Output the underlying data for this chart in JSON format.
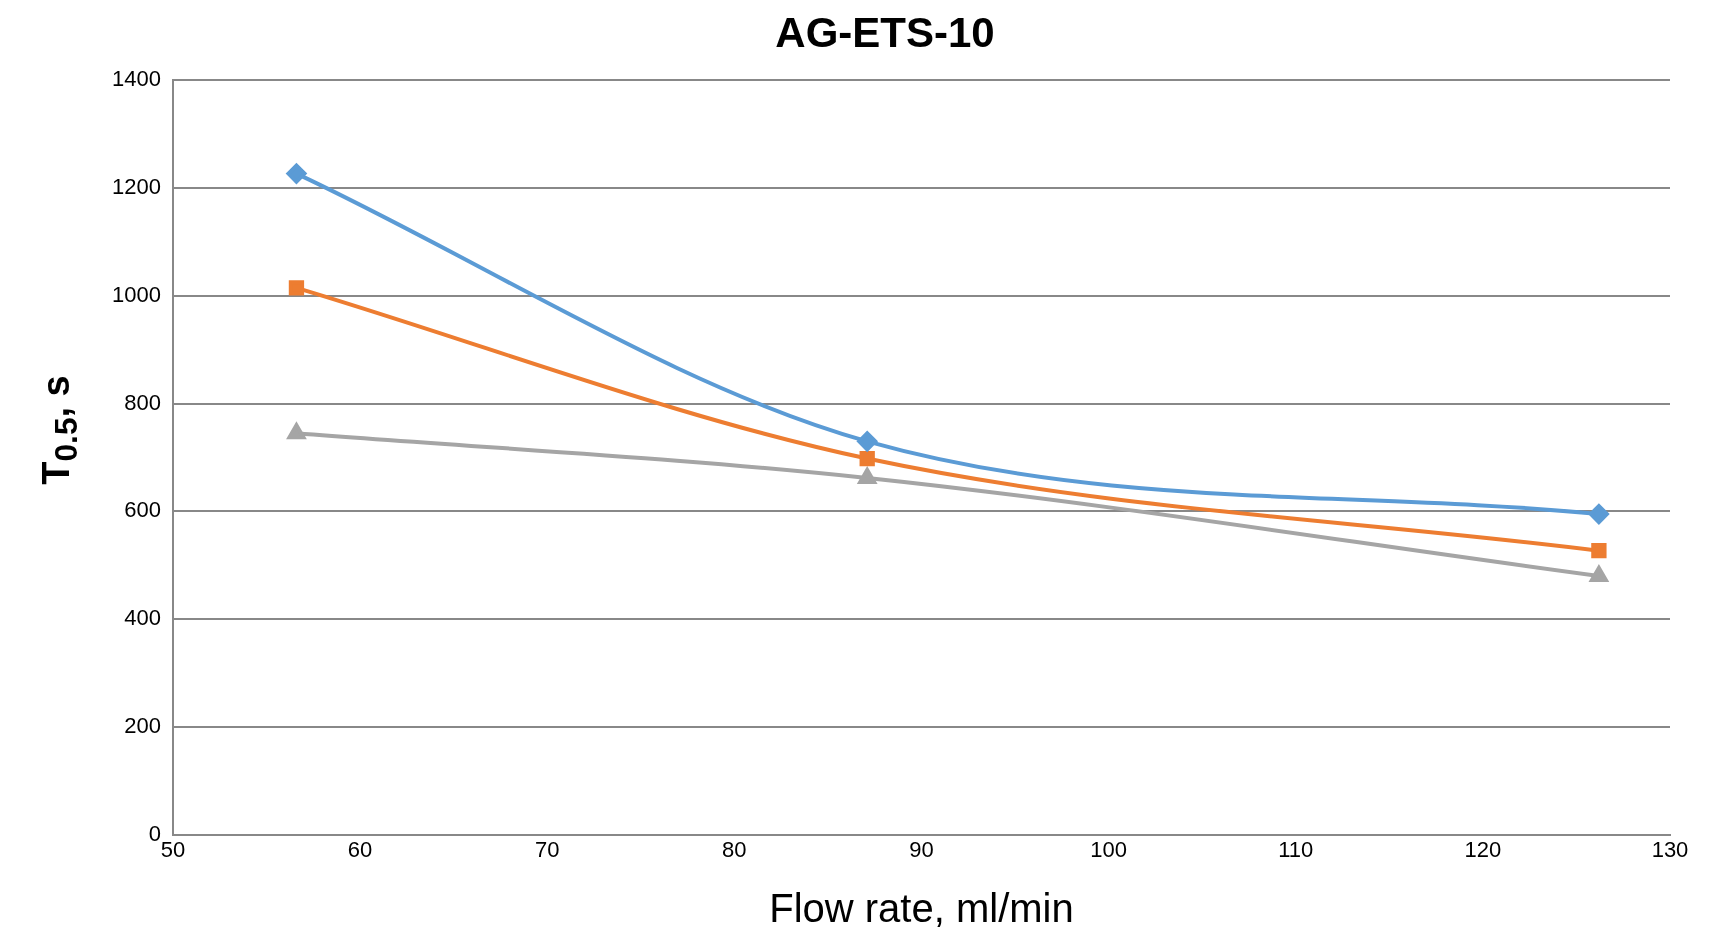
{
  "chart_data": {
    "type": "line",
    "title": "AG-ETS-10",
    "xlabel": "Flow rate, ml/min",
    "ylabel": "T$_{0.5}$, s",
    "x": [
      56.6,
      87.1,
      126.2
    ],
    "series": [
      {
        "color": "#5b9bd5",
        "marker": "diamond",
        "values": [
          1227,
          730,
          595
        ]
      },
      {
        "color": "#ed7d31",
        "marker": "square",
        "values": [
          1015,
          698,
          527
        ]
      },
      {
        "color": "#a5a5a5",
        "marker": "triangle",
        "values": [
          745,
          662,
          480
        ]
      }
    ],
    "xlim": [
      50,
      130
    ],
    "xticks": [
      50,
      60,
      70,
      80,
      90,
      100,
      110,
      120,
      130
    ],
    "ylim": [
      0,
      1400
    ],
    "yticks": [
      0,
      200,
      400,
      600,
      800,
      1000,
      1200,
      1400
    ],
    "grid": "y",
    "legend": false
  }
}
